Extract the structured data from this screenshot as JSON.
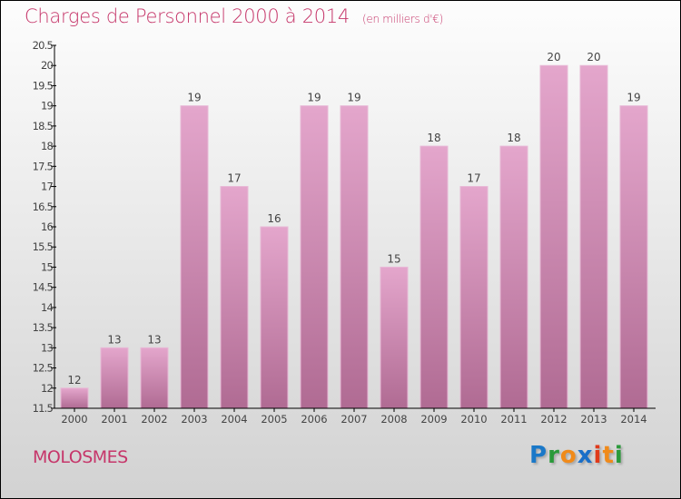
{
  "chart_data": {
    "type": "bar",
    "title": "Charges de Personnel 2000 à 2014",
    "subtitle": "(en milliers d'€)",
    "categories": [
      "2000",
      "2001",
      "2002",
      "2003",
      "2004",
      "2005",
      "2006",
      "2007",
      "2008",
      "2009",
      "2010",
      "2011",
      "2012",
      "2013",
      "2014"
    ],
    "values": [
      12,
      13,
      13,
      19,
      17,
      16,
      19,
      19,
      15,
      18,
      17,
      18,
      20,
      20,
      19
    ],
    "value_labels": [
      "12",
      "13",
      "13",
      "19",
      "17",
      "16",
      "19",
      "19",
      "15",
      "18",
      "17",
      "18",
      "20",
      "20",
      "19"
    ],
    "ylim": [
      11.5,
      20.5
    ],
    "yticks": [
      "11.5",
      "12",
      "12.5",
      "13",
      "13.5",
      "14",
      "14.5",
      "15",
      "15.5",
      "16",
      "16.5",
      "17",
      "17.5",
      "18",
      "18.5",
      "19",
      "19.5",
      "20",
      "20.5"
    ],
    "xlabel": "",
    "ylabel": "",
    "grid": false,
    "bar_color_top": "#e4a6cc",
    "bar_color_bottom": "#b06b93"
  },
  "footer": {
    "city": "MOLOSMES",
    "logo": "Proxiti"
  }
}
